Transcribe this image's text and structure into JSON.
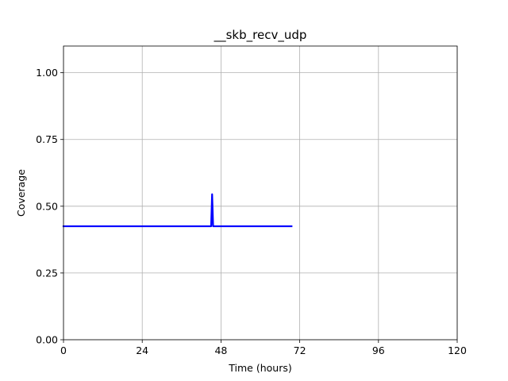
{
  "chart_data": {
    "type": "line",
    "title": "__skb_recv_udp",
    "xlabel": "Time (hours)",
    "ylabel": "Coverage",
    "xlim": [
      0,
      120
    ],
    "ylim": [
      0,
      1.1
    ],
    "xticks": [
      0,
      24,
      48,
      72,
      96,
      120
    ],
    "xtick_labels": [
      "0",
      "24",
      "48",
      "72",
      "96",
      "120"
    ],
    "yticks": [
      0,
      0.25,
      0.5,
      0.75,
      1.0
    ],
    "ytick_labels": [
      "0.00",
      "0.25",
      "0.50",
      "0.75",
      "1.00"
    ],
    "grid": true,
    "series": [
      {
        "color": "#0000ff",
        "x": [
          0,
          45,
          45.3,
          45.6,
          45.9,
          69.5
        ],
        "y": [
          0.425,
          0.425,
          0.545,
          0.425,
          0.425,
          0.425
        ]
      }
    ]
  }
}
